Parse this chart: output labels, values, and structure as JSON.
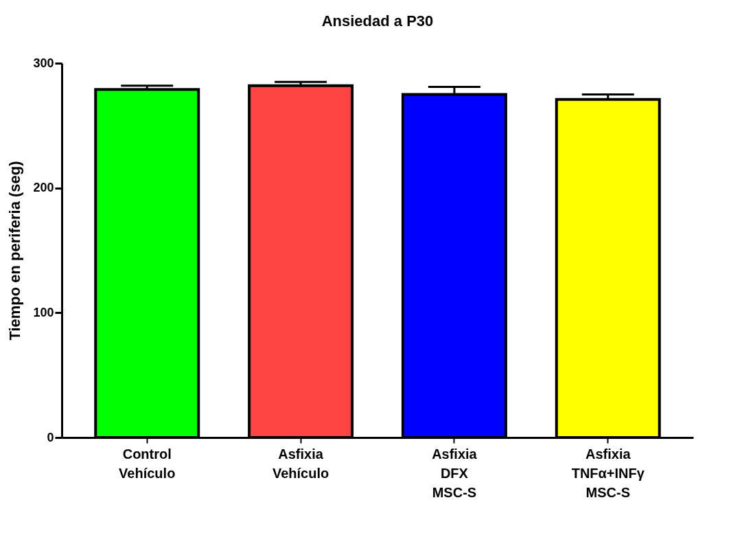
{
  "chart_data": {
    "type": "bar",
    "title": "Ansiedad a P30",
    "ylabel": "Tiempo en  periferia (seg)",
    "categories": [
      "Control\nVehículo",
      "Asfixia\nVehículo",
      "Asfixia\nDFX\nMSC-S",
      "Asfixia\nTNFα+INFγ\nMSC-S"
    ],
    "values": [
      279,
      282,
      275,
      271
    ],
    "errors": [
      3,
      3,
      6,
      4
    ],
    "colors": [
      "#00ff00",
      "#ff4444",
      "#0000ff",
      "#ffff00"
    ],
    "ylim": [
      0,
      300
    ],
    "yticks": [
      0,
      100,
      200,
      300
    ],
    "grid": false,
    "legend": false
  }
}
